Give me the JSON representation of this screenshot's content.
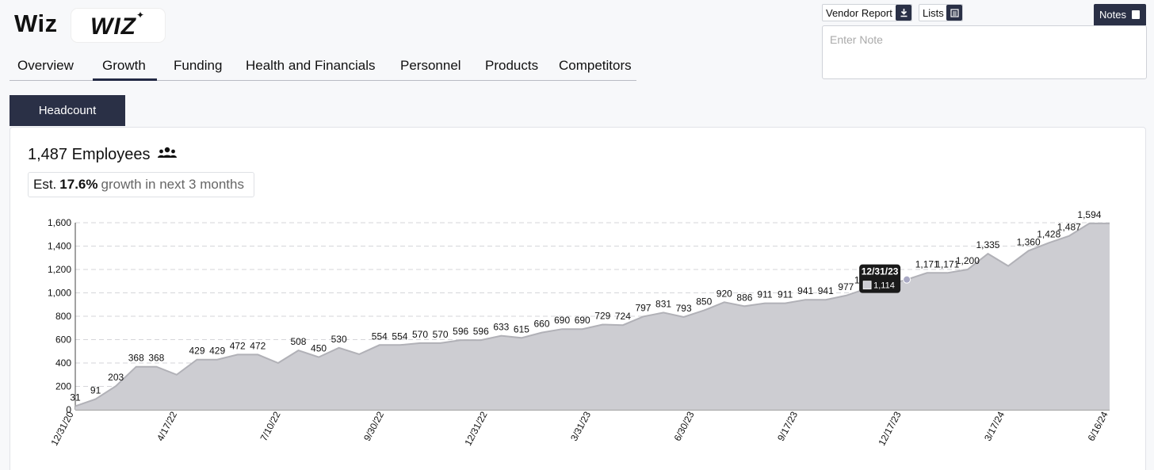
{
  "header": {
    "company_name": "Wiz",
    "logo_text": "WIZ",
    "logo_star": "✦"
  },
  "tabs": [
    {
      "label": "Overview"
    },
    {
      "label": "Growth",
      "active": true
    },
    {
      "label": "Funding"
    },
    {
      "label": "Health and Financials"
    },
    {
      "label": "Personnel"
    },
    {
      "label": "Products"
    },
    {
      "label": "Competitors"
    }
  ],
  "subtab": {
    "label": "Headcount"
  },
  "toolbar": {
    "vendor_report_label": "Vendor Report",
    "vendor_report_icon": "download-icon",
    "lists_label": "Lists",
    "lists_icon": "list-icon",
    "notes_label": "Notes",
    "notes_icon": "note-icon",
    "note_placeholder": "Enter Note",
    "note_value": ""
  },
  "summary": {
    "employees_text": "1,487 Employees",
    "people_icon": "people-icon",
    "est_label": "Est.",
    "growth_pct": "17.6%",
    "growth_rest": "growth in next 3 months"
  },
  "colors": {
    "accent": "#2a3046",
    "area_fill": "#cdcdd2",
    "area_line": "#b1b1b7"
  },
  "chart_data": {
    "type": "area",
    "ylim": [
      0,
      1600
    ],
    "yticks": [
      0,
      200,
      400,
      600,
      800,
      1000,
      1200,
      1400,
      1600
    ],
    "grid": true,
    "xtick_labels": [
      "12/31/20",
      "4/17/22",
      "7/10/22",
      "9/30/22",
      "12/31/22",
      "3/31/23",
      "6/30/23",
      "9/17/23",
      "12/17/23",
      "3/17/24",
      "6/16/24"
    ],
    "series": [
      {
        "values": [
          31,
          91,
          203,
          368,
          368,
          300,
          429,
          429,
          472,
          472,
          400,
          508,
          450,
          530,
          475,
          554,
          554,
          570,
          570,
          596,
          596,
          633,
          615,
          660,
          690,
          690,
          729,
          724,
          797,
          831,
          793,
          850,
          920,
          886,
          911,
          911,
          941,
          941,
          977,
          1035,
          1066,
          1114,
          1171,
          1171,
          1200,
          1335,
          1230,
          1360,
          1428,
          1487,
          1594,
          1594
        ],
        "labels": [
          "31",
          "91",
          "203",
          "368",
          "368",
          "",
          "429",
          "429",
          "472",
          "472",
          "",
          "508",
          "450",
          "530",
          "",
          "554",
          "554",
          "570",
          "570",
          "596",
          "596",
          "633",
          "615",
          "660",
          "690",
          "690",
          "729",
          "724",
          "797",
          "831",
          "793",
          "850",
          "920",
          "886",
          "911",
          "911",
          "941",
          "941",
          "977",
          "1,035",
          "1,066",
          "",
          "1,171",
          "1,171",
          "1,200",
          "1,335",
          "",
          "1,360",
          "1,428",
          "1,487",
          "1,594",
          ""
        ]
      }
    ],
    "tooltip": {
      "date": "12/31/23",
      "value": "1,114"
    }
  }
}
